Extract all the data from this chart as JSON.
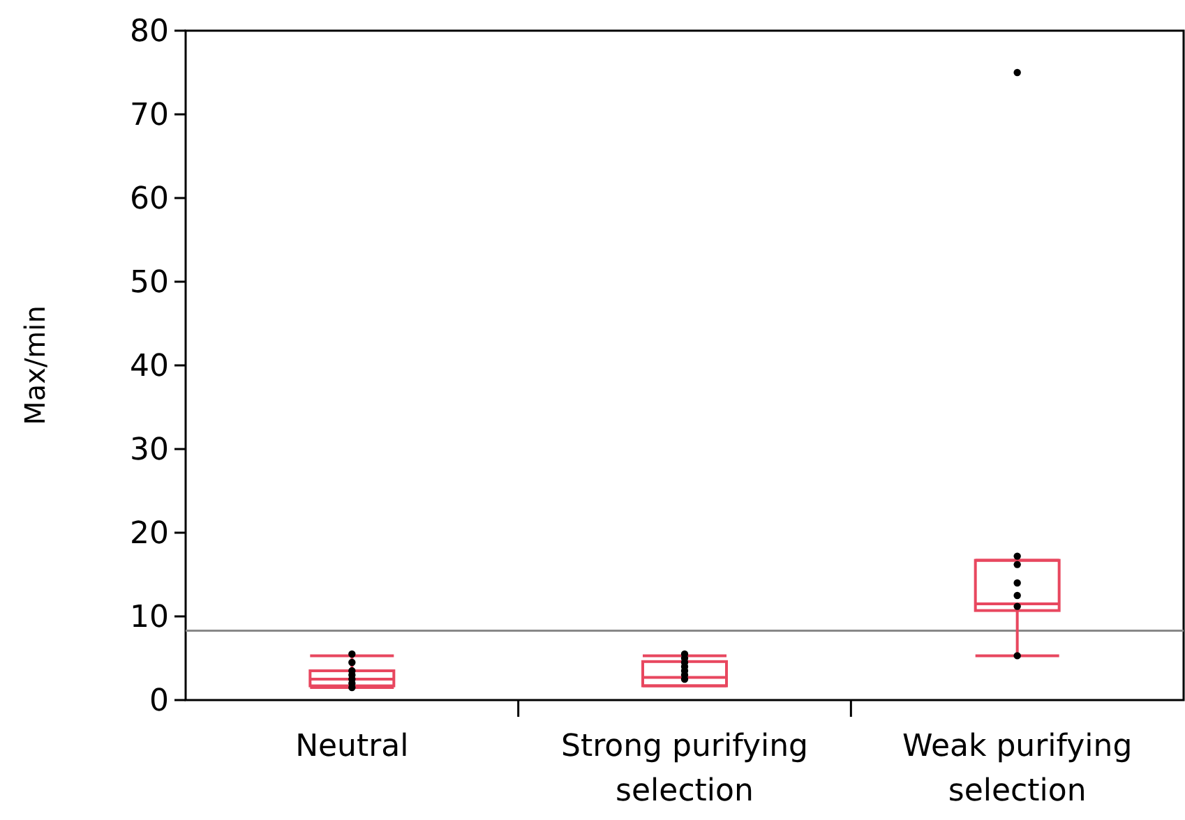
{
  "chart_data": {
    "type": "box",
    "ylabel": "Max/min",
    "categories": [
      "Neutral",
      "Strong purifying selection",
      "Weak purifying selection"
    ],
    "ylim": [
      0,
      80
    ],
    "yticks": [
      0,
      10,
      20,
      30,
      40,
      50,
      60,
      70,
      80
    ],
    "grid": false,
    "series": [
      {
        "color": "#e8475f",
        "boxes": [
          {
            "low": 1.5,
            "q1": 1.7,
            "median": 2.5,
            "q3": 3.5,
            "high": 5.3
          },
          {
            "low": 1.7,
            "q1": 1.7,
            "median": 2.7,
            "q3": 4.6,
            "high": 5.3
          },
          {
            "low": 5.3,
            "q1": 10.7,
            "median": 11.5,
            "q3": 16.7,
            "high": 16.7
          }
        ]
      },
      {
        "type": "scatter",
        "color": "#000000",
        "marker": "circle",
        "x": [
          "Neutral",
          "Neutral",
          "Neutral",
          "Neutral",
          "Neutral",
          "Neutral",
          "Neutral",
          "Strong purifying selection",
          "Strong purifying selection",
          "Strong purifying selection",
          "Strong purifying selection",
          "Strong purifying selection",
          "Strong purifying selection",
          "Strong purifying selection",
          "Weak purifying selection",
          "Weak purifying selection",
          "Weak purifying selection",
          "Weak purifying selection",
          "Weak purifying selection",
          "Weak purifying selection",
          "Weak purifying selection"
        ],
        "values": [
          5.5,
          4.5,
          3.5,
          3,
          2.5,
          2,
          1.5,
          5.5,
          5,
          4.5,
          4,
          3.5,
          3,
          2.5,
          75,
          17.2,
          16.2,
          14,
          12.5,
          11.2,
          5.3
        ]
      }
    ],
    "ref_lines": [
      {
        "axis": "y",
        "value": 8.3,
        "color": "#888888"
      }
    ]
  }
}
